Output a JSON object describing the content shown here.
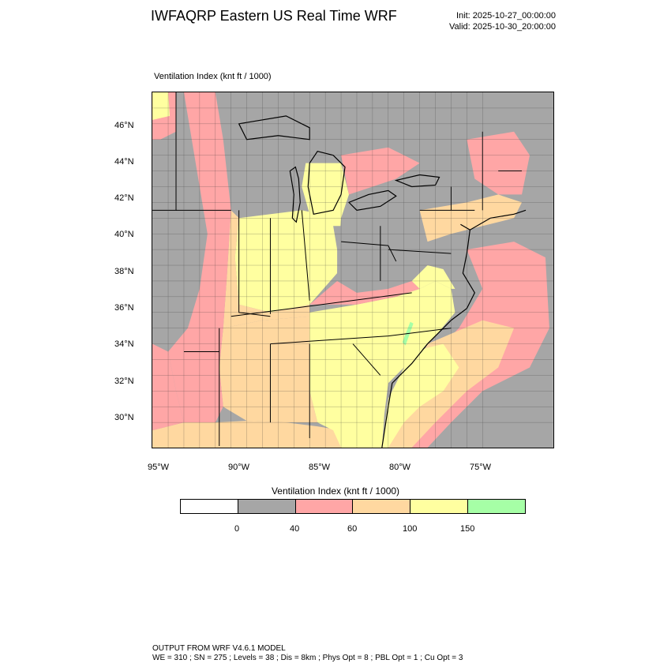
{
  "header": {
    "title": "IWFAQRP Eastern US Real Time WRF",
    "init": "Init: 2025-10-27_00:00:00",
    "valid": "Valid: 2025-10-30_20:00:00"
  },
  "field_label": "Ventilation Index   (knt ft / 1000)",
  "map": {
    "lat_labels": [
      "46°N",
      "44°N",
      "42°N",
      "40°N",
      "38°N",
      "36°N",
      "34°N",
      "32°N",
      "30°N"
    ],
    "lon_labels": [
      "95°W",
      "90°W",
      "85°W",
      "80°W",
      "75°W"
    ],
    "colors": {
      "below_0": "#ffffff",
      "0_40": "#a6a6a6",
      "40_60": "#ffa6a6",
      "60_100": "#ffd8a0",
      "100_150": "#ffffa0",
      "above_150": "#a6ffa6"
    }
  },
  "colorbar": {
    "title": "Ventilation Index  (knt ft / 1000)",
    "colors": [
      "#ffffff",
      "#a6a6a6",
      "#ffa6a6",
      "#ffd8a0",
      "#ffffa0",
      "#a6ffa6"
    ],
    "labels": [
      "0",
      "40",
      "60",
      "100",
      "150"
    ]
  },
  "footer": {
    "line1": "OUTPUT FROM WRF V4.6.1 MODEL",
    "line2": "WE = 310 ; SN = 275 ; Levels = 38 ; Dis = 8km ; Phys Opt = 8 ; PBL Opt = 1 ; Cu Opt = 3"
  }
}
